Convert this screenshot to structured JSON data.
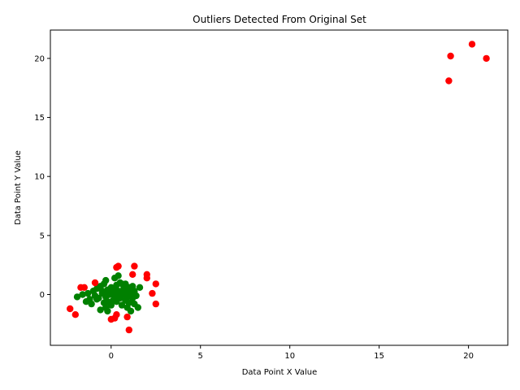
{
  "chart_data": {
    "type": "scatter",
    "title": "Outliers Detected From Original Set",
    "xlabel": "Data Point X Value",
    "ylabel": "Data Point Y Value",
    "xlim": [
      -3.4,
      22.2
    ],
    "ylim": [
      -4.3,
      22.4
    ],
    "xticks": [
      0,
      5,
      10,
      15,
      20
    ],
    "yticks": [
      0,
      5,
      10,
      15,
      20
    ],
    "grid": false,
    "legend": "none",
    "series": [
      {
        "color": "#008000",
        "points": [
          [
            -1.9,
            -0.2
          ],
          [
            -1.6,
            0.0
          ],
          [
            -1.4,
            -0.6
          ],
          [
            -1.2,
            -0.4
          ],
          [
            -1.1,
            -0.8
          ],
          [
            -1.0,
            0.3
          ],
          [
            -0.9,
            -0.1
          ],
          [
            -0.8,
            0.5
          ],
          [
            -0.7,
            -0.3
          ],
          [
            -0.6,
            0.7
          ],
          [
            -0.6,
            -1.3
          ],
          [
            -0.5,
            0.1
          ],
          [
            -0.4,
            0.9
          ],
          [
            -0.4,
            -0.7
          ],
          [
            -0.3,
            1.2
          ],
          [
            -0.3,
            -1.1
          ],
          [
            -0.2,
            0.4
          ],
          [
            -0.2,
            -1.4
          ],
          [
            -0.1,
            0.0
          ],
          [
            0.0,
            0.6
          ],
          [
            0.0,
            -0.9
          ],
          [
            0.1,
            0.2
          ],
          [
            0.1,
            -0.5
          ],
          [
            0.2,
            1.4
          ],
          [
            0.2,
            -0.2
          ],
          [
            0.3,
            0.8
          ],
          [
            0.3,
            -0.6
          ],
          [
            0.4,
            1.6
          ],
          [
            0.4,
            0.3
          ],
          [
            0.5,
            -0.3
          ],
          [
            0.5,
            1.0
          ],
          [
            0.6,
            -0.9
          ],
          [
            0.7,
            0.5
          ],
          [
            0.7,
            0.0
          ],
          [
            0.8,
            0.9
          ],
          [
            0.8,
            -0.5
          ],
          [
            0.9,
            0.2
          ],
          [
            0.9,
            -1.1
          ],
          [
            1.0,
            0.6
          ],
          [
            1.0,
            -0.7
          ],
          [
            1.1,
            0.1
          ],
          [
            1.1,
            -1.4
          ],
          [
            1.2,
            0.7
          ],
          [
            1.2,
            -0.3
          ],
          [
            1.3,
            0.3
          ],
          [
            1.3,
            -0.8
          ],
          [
            1.4,
            -0.1
          ],
          [
            1.5,
            -1.1
          ],
          [
            1.6,
            0.6
          ],
          [
            -0.8,
            -0.4
          ],
          [
            -0.5,
            0.3
          ],
          [
            -0.3,
            -0.2
          ],
          [
            0.0,
            0.1
          ],
          [
            0.2,
            -0.3
          ],
          [
            0.4,
            0.1
          ],
          [
            0.6,
            0.2
          ],
          [
            0.3,
            -0.1
          ],
          [
            -0.1,
            0.3
          ],
          [
            -1.3,
            0.1
          ],
          [
            -0.2,
            -0.6
          ],
          [
            0.1,
            0.5
          ],
          [
            0.9,
            -0.2
          ],
          [
            0.6,
            0.9
          ],
          [
            -0.4,
            0.2
          ]
        ]
      },
      {
        "color": "#ff0000",
        "points": [
          [
            -2.3,
            -1.2
          ],
          [
            -2.0,
            -1.7
          ],
          [
            -1.7,
            0.6
          ],
          [
            -1.5,
            0.6
          ],
          [
            -0.9,
            1.0
          ],
          [
            0.0,
            -2.1
          ],
          [
            0.2,
            -2.0
          ],
          [
            0.3,
            -1.7
          ],
          [
            0.3,
            2.3
          ],
          [
            0.4,
            2.4
          ],
          [
            0.9,
            -1.9
          ],
          [
            1.0,
            -3.0
          ],
          [
            1.2,
            1.7
          ],
          [
            1.3,
            2.4
          ],
          [
            2.0,
            1.7
          ],
          [
            2.0,
            1.4
          ],
          [
            2.3,
            0.1
          ],
          [
            2.5,
            0.9
          ],
          [
            2.5,
            -0.8
          ],
          [
            18.9,
            18.1
          ],
          [
            19.0,
            20.2
          ],
          [
            20.2,
            21.2
          ],
          [
            21.0,
            20.0
          ]
        ]
      }
    ]
  }
}
